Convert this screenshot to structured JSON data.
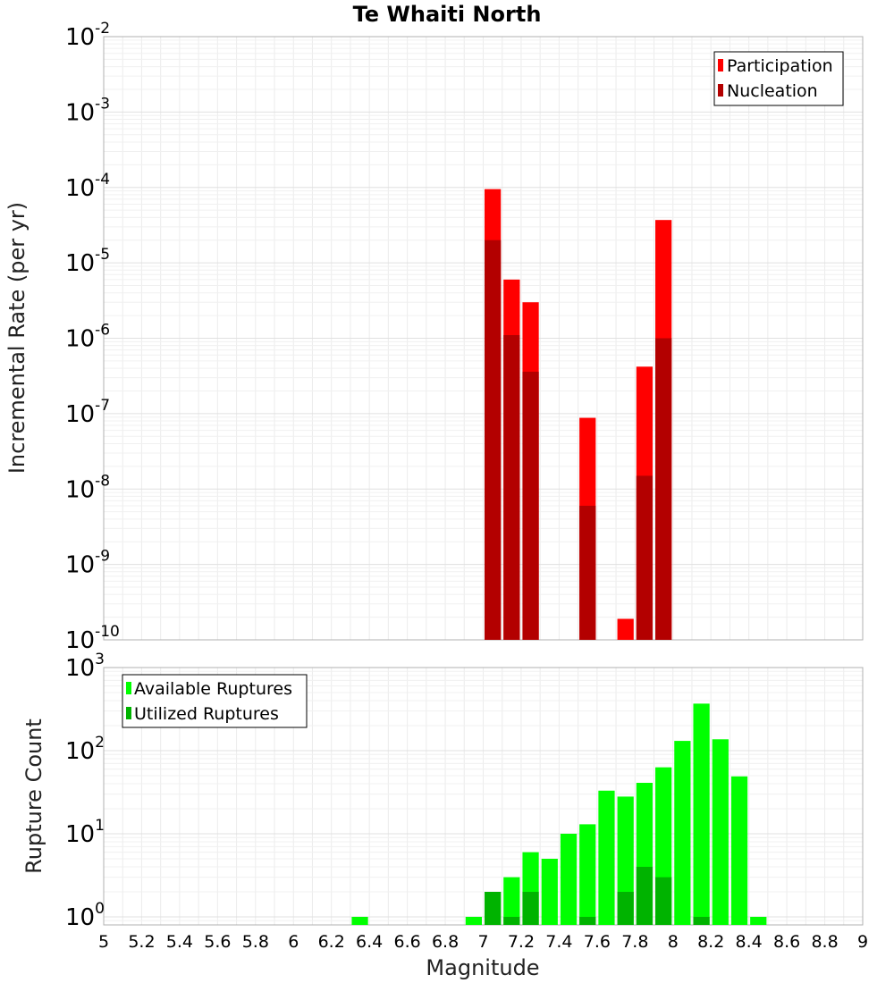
{
  "chart_data": [
    {
      "type": "bar",
      "title": "Te Whaiti North",
      "xlabel": "",
      "ylabel": "Incremental Rate (per yr)",
      "xlim": [
        5,
        9
      ],
      "ylim": [
        1e-10,
        0.01
      ],
      "yscale": "log",
      "grid": true,
      "legend_position": "top-right",
      "y_ticks": [
        {
          "base": "10",
          "exp": "-10",
          "value": 1e-10
        },
        {
          "base": "10",
          "exp": "-9",
          "value": 1e-09
        },
        {
          "base": "10",
          "exp": "-8",
          "value": 1e-08
        },
        {
          "base": "10",
          "exp": "-7",
          "value": 1e-07
        },
        {
          "base": "10",
          "exp": "-6",
          "value": 1e-06
        },
        {
          "base": "10",
          "exp": "-5",
          "value": 1e-05
        },
        {
          "base": "10",
          "exp": "-4",
          "value": 0.0001
        },
        {
          "base": "10",
          "exp": "-3",
          "value": 0.001
        },
        {
          "base": "10",
          "exp": "-2",
          "value": 0.01
        }
      ],
      "series": [
        {
          "name": "Participation",
          "color": "#ff0000",
          "points": [
            {
              "x": 7.05,
              "y": 9.5e-05
            },
            {
              "x": 7.15,
              "y": 6e-06
            },
            {
              "x": 7.25,
              "y": 3e-06
            },
            {
              "x": 7.55,
              "y": 8.8e-08
            },
            {
              "x": 7.75,
              "y": 1.9e-10
            },
            {
              "x": 7.85,
              "y": 4.2e-07
            },
            {
              "x": 7.95,
              "y": 3.7e-05
            }
          ]
        },
        {
          "name": "Nucleation",
          "color": "#b30000",
          "points": [
            {
              "x": 7.05,
              "y": 2e-05
            },
            {
              "x": 7.15,
              "y": 1.1e-06
            },
            {
              "x": 7.25,
              "y": 3.6e-07
            },
            {
              "x": 7.55,
              "y": 6e-09
            },
            {
              "x": 7.85,
              "y": 1.5e-08
            },
            {
              "x": 7.95,
              "y": 1e-06
            }
          ]
        }
      ]
    },
    {
      "type": "bar",
      "title": "",
      "xlabel": "Magnitude",
      "ylabel": "Rupture Count",
      "xlim": [
        5,
        9
      ],
      "ylim": [
        0.8,
        1000
      ],
      "yscale": "log",
      "grid": true,
      "legend_position": "top-left",
      "y_ticks": [
        {
          "base": "10",
          "exp": "0",
          "value": 1
        },
        {
          "base": "10",
          "exp": "1",
          "value": 10
        },
        {
          "base": "10",
          "exp": "2",
          "value": 100
        },
        {
          "base": "10",
          "exp": "3",
          "value": 1000
        }
      ],
      "x_ticks": [
        "5",
        "5.2",
        "5.4",
        "5.6",
        "5.8",
        "6",
        "6.2",
        "6.4",
        "6.6",
        "6.8",
        "7",
        "7.2",
        "7.4",
        "7.6",
        "7.8",
        "8",
        "8.2",
        "8.4",
        "8.6",
        "8.8",
        "9"
      ],
      "series": [
        {
          "name": "Available Ruptures",
          "color": "#00ff00",
          "points": [
            {
              "x": 6.35,
              "y": 1
            },
            {
              "x": 6.95,
              "y": 1
            },
            {
              "x": 7.05,
              "y": 2
            },
            {
              "x": 7.15,
              "y": 3
            },
            {
              "x": 7.25,
              "y": 6
            },
            {
              "x": 7.35,
              "y": 5
            },
            {
              "x": 7.45,
              "y": 10
            },
            {
              "x": 7.55,
              "y": 13
            },
            {
              "x": 7.65,
              "y": 33
            },
            {
              "x": 7.75,
              "y": 28
            },
            {
              "x": 7.85,
              "y": 41
            },
            {
              "x": 7.95,
              "y": 63
            },
            {
              "x": 8.05,
              "y": 131
            },
            {
              "x": 8.15,
              "y": 368
            },
            {
              "x": 8.25,
              "y": 137
            },
            {
              "x": 8.35,
              "y": 49
            },
            {
              "x": 8.45,
              "y": 1
            }
          ]
        },
        {
          "name": "Utilized Ruptures",
          "color": "#00b300",
          "points": [
            {
              "x": 7.05,
              "y": 2
            },
            {
              "x": 7.15,
              "y": 1
            },
            {
              "x": 7.25,
              "y": 2
            },
            {
              "x": 7.55,
              "y": 1
            },
            {
              "x": 7.75,
              "y": 2
            },
            {
              "x": 7.85,
              "y": 4
            },
            {
              "x": 7.95,
              "y": 3
            },
            {
              "x": 8.15,
              "y": 1
            }
          ]
        }
      ]
    }
  ]
}
